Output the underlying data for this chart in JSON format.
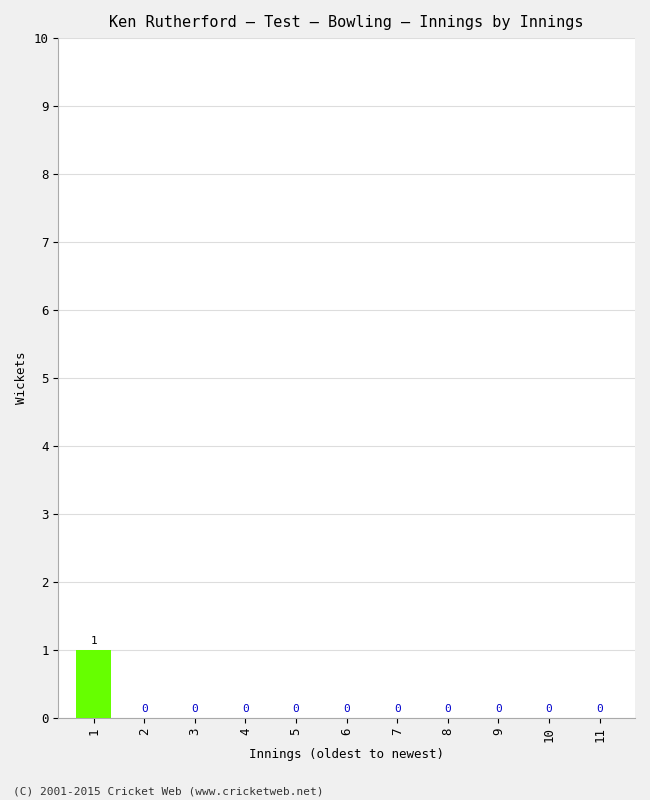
{
  "title": "Ken Rutherford – Test – Bowling – Innings by Innings",
  "xlabel": "Innings (oldest to newest)",
  "ylabel": "Wickets",
  "innings": [
    1,
    2,
    3,
    4,
    5,
    6,
    7,
    8,
    9,
    10,
    11
  ],
  "wickets": [
    1,
    0,
    0,
    0,
    0,
    0,
    0,
    0,
    0,
    0,
    0
  ],
  "bar_color_nonzero": "#66ff00",
  "label_color_nonzero": "#000000",
  "label_color_zero": "#0000cc",
  "ylim": [
    0,
    10
  ],
  "yticks": [
    0,
    1,
    2,
    3,
    4,
    5,
    6,
    7,
    8,
    9,
    10
  ],
  "xticks": [
    1,
    2,
    3,
    4,
    5,
    6,
    7,
    8,
    9,
    10,
    11
  ],
  "background_color": "#f0f0f0",
  "plot_bg_color": "#ffffff",
  "grid_color": "#dddddd",
  "footer": "(C) 2001-2015 Cricket Web (www.cricketweb.net)",
  "title_fontsize": 11,
  "axis_label_fontsize": 9,
  "tick_fontsize": 9,
  "annotation_fontsize": 8,
  "footer_fontsize": 8
}
